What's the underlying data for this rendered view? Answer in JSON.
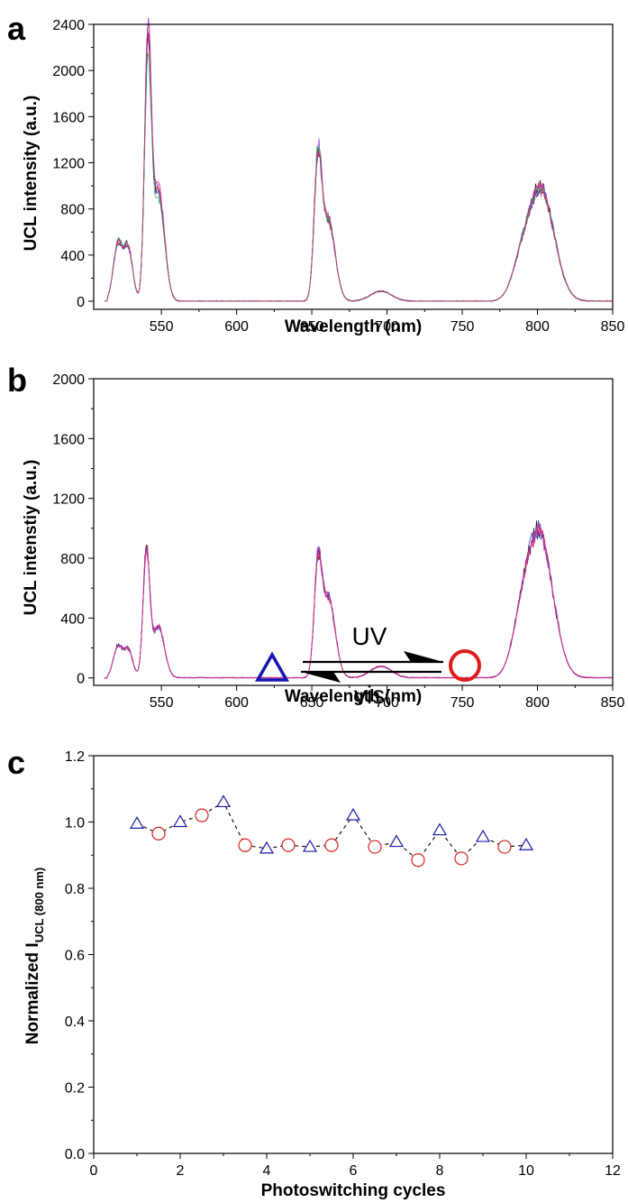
{
  "chart_data": [
    {
      "panel": "a",
      "type": "line",
      "xlabel": "Wavelength (nm)",
      "ylabel": "UCL intensity (a.u.)",
      "xlim": [
        505,
        850
      ],
      "ylim": [
        -70,
        2400
      ],
      "xticks": [
        550,
        600,
        650,
        700,
        750,
        800,
        850
      ],
      "yticks": [
        0,
        400,
        800,
        1200,
        1600,
        2000,
        2400
      ],
      "tick_labels_x": [
        "550",
        "600",
        "650",
        "700",
        "750",
        "800",
        "850"
      ],
      "tick_labels_y": [
        "0",
        "400",
        "800",
        "1200",
        "1600",
        "2000",
        "2400"
      ],
      "peaks": [
        {
          "x": 521,
          "y": 500
        },
        {
          "x": 528,
          "y": 460
        },
        {
          "x": 541,
          "y": 2200
        },
        {
          "x": 548,
          "y": 980
        },
        {
          "x": 654,
          "y": 1150
        },
        {
          "x": 661,
          "y": 720
        },
        {
          "x": 696,
          "y": 90
        },
        {
          "x": 802,
          "y": 1000
        }
      ],
      "series_colors": [
        "#000000",
        "#1f2f9f",
        "#d62a5e",
        "#8a2be2",
        "#1f9f4a",
        "#e0357a"
      ]
    },
    {
      "panel": "b",
      "type": "line",
      "xlabel": "Wavelength (nm)",
      "ylabel": "UCL intenstiy (a.u.)",
      "xlim": [
        505,
        850
      ],
      "ylim": [
        -50,
        2000
      ],
      "xticks": [
        550,
        600,
        650,
        700,
        750,
        800,
        850
      ],
      "yticks": [
        0,
        400,
        800,
        1200,
        1600,
        2000
      ],
      "tick_labels_x": [
        "550",
        "600",
        "650",
        "700",
        "750",
        "800",
        "850"
      ],
      "tick_labels_y": [
        "0",
        "400",
        "800",
        "1200",
        "1600",
        "2000"
      ],
      "peaks": [
        {
          "x": 521,
          "y": 210
        },
        {
          "x": 528,
          "y": 190
        },
        {
          "x": 540,
          "y": 850
        },
        {
          "x": 548,
          "y": 350
        },
        {
          "x": 654,
          "y": 700
        },
        {
          "x": 661,
          "y": 550
        },
        {
          "x": 696,
          "y": 80
        },
        {
          "x": 801,
          "y": 1000
        }
      ],
      "series_colors": [
        "#000000",
        "#1f2f9f",
        "#d62a5e",
        "#8a2be2",
        "#e0357a"
      ]
    },
    {
      "panel": "c",
      "type": "scatter",
      "xlabel": "Photoswitching cycles",
      "ylabel_main": "Normalized I",
      "ylabel_sub": "UCL (800 nm)",
      "xlim": [
        0,
        12
      ],
      "ylim": [
        0,
        1.2
      ],
      "xticks": [
        0,
        2,
        4,
        6,
        8,
        10,
        12
      ],
      "yticks": [
        0.0,
        0.2,
        0.4,
        0.6,
        0.8,
        1.0,
        1.2
      ],
      "tick_labels_x": [
        "0",
        "2",
        "4",
        "6",
        "8",
        "10",
        "12"
      ],
      "tick_labels_y": [
        "0.0",
        "0.2",
        "0.4",
        "0.6",
        "0.8",
        "1.0",
        "1.2"
      ],
      "series": [
        {
          "marker": "triangle",
          "color": "#1a1aa8",
          "points": [
            [
              1,
              0.995
            ],
            [
              2,
              1.0
            ],
            [
              3,
              1.06
            ],
            [
              4,
              0.92
            ],
            [
              5,
              0.925
            ],
            [
              6,
              1.02
            ],
            [
              7,
              0.94
            ],
            [
              8,
              0.975
            ],
            [
              9,
              0.955
            ],
            [
              10,
              0.93
            ]
          ]
        },
        {
          "marker": "circle",
          "color": "#d62020",
          "points": [
            [
              1.5,
              0.965
            ],
            [
              2.5,
              1.02
            ],
            [
              3.5,
              0.93
            ],
            [
              4.5,
              0.93
            ],
            [
              5.5,
              0.93
            ],
            [
              6.5,
              0.925
            ],
            [
              7.5,
              0.885
            ],
            [
              8.5,
              0.89
            ],
            [
              9.5,
              0.925
            ]
          ]
        }
      ],
      "annotation": {
        "forward_label": "UV",
        "backward_label": "vis",
        "triangle_color": "#1515b0",
        "circle_color": "#e01b1b"
      }
    }
  ]
}
